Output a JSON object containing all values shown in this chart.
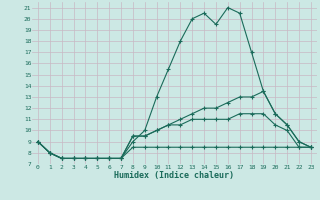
{
  "xlabel": "Humidex (Indice chaleur)",
  "bg_color": "#cce8e4",
  "grid_color": "#c8b8c4",
  "line_color": "#1a6b5a",
  "xlim": [
    -0.5,
    23.5
  ],
  "ylim": [
    7,
    21.5
  ],
  "xticks": [
    0,
    1,
    2,
    3,
    4,
    5,
    6,
    7,
    8,
    9,
    10,
    11,
    12,
    13,
    14,
    15,
    16,
    17,
    18,
    19,
    20,
    21,
    22,
    23
  ],
  "yticks": [
    7,
    8,
    9,
    10,
    11,
    12,
    13,
    14,
    15,
    16,
    17,
    18,
    19,
    20,
    21
  ],
  "series": [
    {
      "x": [
        0,
        1,
        2,
        3,
        4,
        5,
        6,
        7,
        8,
        9,
        10,
        11,
        12,
        13,
        14,
        15,
        16,
        17,
        18,
        19,
        20,
        21,
        22,
        23
      ],
      "y": [
        9,
        8,
        7.5,
        7.5,
        7.5,
        7.5,
        7.5,
        7.5,
        9,
        10,
        13,
        15.5,
        18,
        20,
        20.5,
        19.5,
        21,
        20.5,
        17,
        13.5,
        11.5,
        10.5,
        9.0,
        8.5
      ]
    },
    {
      "x": [
        0,
        1,
        2,
        3,
        4,
        5,
        6,
        7,
        8,
        9,
        10,
        11,
        12,
        13,
        14,
        15,
        16,
        17,
        18,
        19,
        20,
        21,
        22,
        23
      ],
      "y": [
        9,
        8,
        7.5,
        7.5,
        7.5,
        7.5,
        7.5,
        7.5,
        9.5,
        9.5,
        10,
        10.5,
        11,
        11.5,
        12,
        12,
        12.5,
        13,
        13,
        13.5,
        11.5,
        10.5,
        9.0,
        8.5
      ]
    },
    {
      "x": [
        0,
        1,
        2,
        3,
        4,
        5,
        6,
        7,
        8,
        9,
        10,
        11,
        12,
        13,
        14,
        15,
        16,
        17,
        18,
        19,
        20,
        21,
        22,
        23
      ],
      "y": [
        9,
        8,
        7.5,
        7.5,
        7.5,
        7.5,
        7.5,
        7.5,
        9.5,
        9.5,
        10,
        10.5,
        10.5,
        11,
        11,
        11,
        11,
        11.5,
        11.5,
        11.5,
        10.5,
        10,
        8.5,
        8.5
      ]
    },
    {
      "x": [
        0,
        1,
        2,
        3,
        4,
        5,
        6,
        7,
        8,
        9,
        10,
        11,
        12,
        13,
        14,
        15,
        16,
        17,
        18,
        19,
        20,
        21,
        22,
        23
      ],
      "y": [
        9,
        8,
        7.5,
        7.5,
        7.5,
        7.5,
        7.5,
        7.5,
        8.5,
        8.5,
        8.5,
        8.5,
        8.5,
        8.5,
        8.5,
        8.5,
        8.5,
        8.5,
        8.5,
        8.5,
        8.5,
        8.5,
        8.5,
        8.5
      ]
    }
  ]
}
